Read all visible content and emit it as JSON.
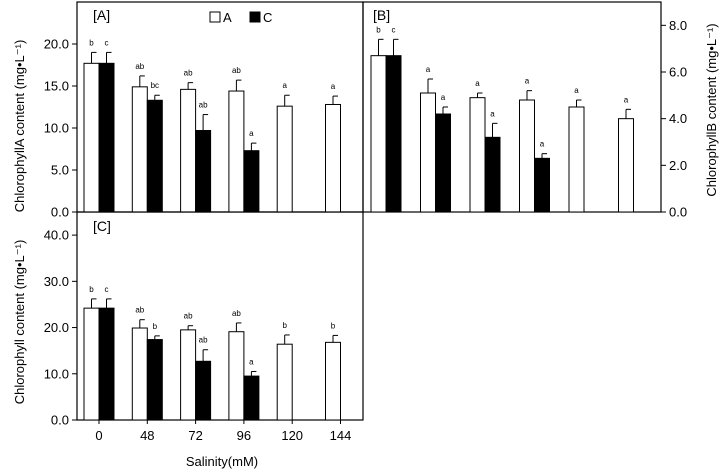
{
  "chart_data": [
    {
      "type": "bar",
      "panel": "[A]",
      "ylabel": "ChlorophyllA content (mg•L⁻¹)",
      "ylim": [
        0,
        25
      ],
      "yticks": [
        "0.0",
        "5.0",
        "10.0",
        "15.0",
        "20.0"
      ],
      "y_axis_side": "left",
      "categories": [
        "0",
        "48",
        "72",
        "96",
        "120",
        "144"
      ],
      "series": [
        {
          "name": "A",
          "color": "#ffffff",
          "values": [
            17.7,
            14.9,
            14.6,
            14.4,
            12.6,
            12.8
          ],
          "errors": [
            1.3,
            1.3,
            0.8,
            1.3,
            1.3,
            1.0
          ],
          "letters": [
            "b",
            "ab",
            "ab",
            "ab",
            "a",
            "a"
          ]
        },
        {
          "name": "C",
          "color": "#000000",
          "values": [
            17.7,
            13.3,
            9.7,
            7.3,
            null,
            null
          ],
          "errors": [
            1.3,
            0.6,
            1.9,
            0.9,
            null,
            null
          ],
          "letters": [
            "c",
            "bc",
            "ab",
            "a",
            null,
            null
          ]
        }
      ]
    },
    {
      "type": "bar",
      "panel": "[B]",
      "ylabel": "ChlorophyllB content (mg•L⁻¹)",
      "ylim": [
        0,
        9
      ],
      "yticks": [
        "0.0",
        "2.0",
        "4.0",
        "6.0",
        "8.0"
      ],
      "y_axis_side": "right",
      "categories": [
        "0",
        "48",
        "72",
        "96",
        "120",
        "144"
      ],
      "series": [
        {
          "name": "A",
          "color": "#ffffff",
          "values": [
            6.7,
            5.1,
            4.9,
            4.8,
            4.5,
            4.0
          ],
          "errors": [
            0.7,
            0.6,
            0.2,
            0.4,
            0.3,
            0.4
          ],
          "letters": [
            "b",
            "a",
            "a",
            "a",
            "a",
            "a"
          ]
        },
        {
          "name": "C",
          "color": "#000000",
          "values": [
            6.7,
            4.2,
            3.2,
            2.3,
            null,
            null
          ],
          "errors": [
            0.7,
            0.3,
            0.6,
            0.2,
            null,
            null
          ],
          "letters": [
            "c",
            "a",
            "a",
            "a",
            null,
            null
          ]
        }
      ]
    },
    {
      "type": "bar",
      "panel": "[C]",
      "ylabel": "Chlorophyll content (mg•L⁻¹)",
      "xlabel": "Salinity(mM)",
      "ylim": [
        0,
        45
      ],
      "yticks": [
        "0.0",
        "10.0",
        "20.0",
        "30.0",
        "40.0"
      ],
      "y_axis_side": "left",
      "categories": [
        "0",
        "48",
        "72",
        "96",
        "120",
        "144"
      ],
      "series": [
        {
          "name": "A",
          "color": "#ffffff",
          "values": [
            24.2,
            19.9,
            19.5,
            19.1,
            16.4,
            16.8
          ],
          "errors": [
            2.0,
            1.8,
            0.9,
            1.9,
            2.0,
            1.5
          ],
          "letters": [
            "b",
            "ab",
            "ab",
            "ab",
            "b",
            "b"
          ]
        },
        {
          "name": "C",
          "color": "#000000",
          "values": [
            24.2,
            17.4,
            12.7,
            9.5,
            null,
            null
          ],
          "errors": [
            2.0,
            0.8,
            2.5,
            1.0,
            null,
            null
          ],
          "letters": [
            "c",
            "b",
            "ab",
            "a",
            null,
            null
          ]
        }
      ]
    }
  ],
  "legend": {
    "entries": [
      {
        "label": "A",
        "color": "#ffffff"
      },
      {
        "label": "C",
        "color": "#000000"
      }
    ],
    "placement": "top of panel A"
  }
}
